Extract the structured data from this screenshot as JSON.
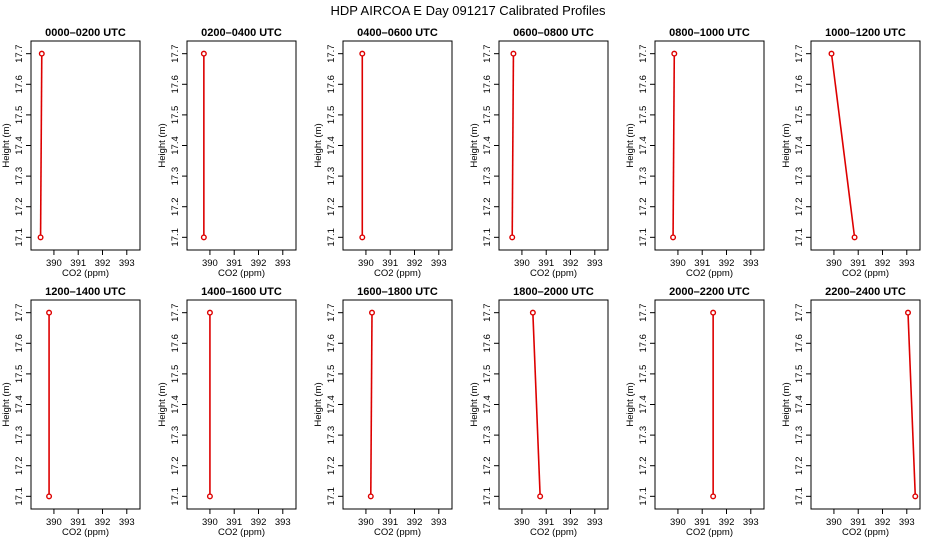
{
  "figure": {
    "title": "HDP AIRCOA E  Day 091217  Calibrated Profiles"
  },
  "chart_data": [
    {
      "type": "line",
      "title": "0000–0200 UTC",
      "xlabel": "CO2 (ppm)",
      "ylabel": "Height (m)",
      "xlim": [
        389.2,
        393.4
      ],
      "ylim": [
        17.07,
        17.73
      ],
      "xticks": [
        "390",
        "391",
        "392",
        "393"
      ],
      "yticks": [
        "17.1",
        "17.2",
        "17.3",
        "17.4",
        "17.5",
        "17.6",
        "17.7"
      ],
      "series": [
        {
          "x": [
            389.5,
            389.45
          ],
          "y": [
            17.7,
            17.1
          ]
        }
      ]
    },
    {
      "type": "line",
      "title": "0200–0400 UTC",
      "xlabel": "CO2 (ppm)",
      "ylabel": "Height (m)",
      "xlim": [
        389.2,
        393.4
      ],
      "ylim": [
        17.07,
        17.73
      ],
      "xticks": [
        "390",
        "391",
        "392",
        "393"
      ],
      "yticks": [
        "17.1",
        "17.2",
        "17.3",
        "17.4",
        "17.5",
        "17.6",
        "17.7"
      ],
      "series": [
        {
          "x": [
            389.75,
            389.75
          ],
          "y": [
            17.7,
            17.1
          ]
        }
      ]
    },
    {
      "type": "line",
      "title": "0400–0600 UTC",
      "xlabel": "CO2 (ppm)",
      "ylabel": "Height (m)",
      "xlim": [
        389.2,
        393.4
      ],
      "ylim": [
        17.07,
        17.73
      ],
      "xticks": [
        "390",
        "391",
        "392",
        "393"
      ],
      "yticks": [
        "17.1",
        "17.2",
        "17.3",
        "17.4",
        "17.5",
        "17.6",
        "17.7"
      ],
      "series": [
        {
          "x": [
            389.85,
            389.85
          ],
          "y": [
            17.7,
            17.1
          ]
        }
      ]
    },
    {
      "type": "line",
      "title": "0600–0800 UTC",
      "xlabel": "CO2 (ppm)",
      "ylabel": "Height (m)",
      "xlim": [
        389.2,
        393.4
      ],
      "ylim": [
        17.07,
        17.73
      ],
      "xticks": [
        "390",
        "391",
        "392",
        "393"
      ],
      "yticks": [
        "17.1",
        "17.2",
        "17.3",
        "17.4",
        "17.5",
        "17.6",
        "17.7"
      ],
      "series": [
        {
          "x": [
            389.65,
            389.6
          ],
          "y": [
            17.7,
            17.1
          ]
        }
      ]
    },
    {
      "type": "line",
      "title": "0800–1000 UTC",
      "xlabel": "CO2 (ppm)",
      "ylabel": "Height (m)",
      "xlim": [
        389.2,
        393.4
      ],
      "ylim": [
        17.07,
        17.73
      ],
      "xticks": [
        "390",
        "391",
        "392",
        "393"
      ],
      "yticks": [
        "17.1",
        "17.2",
        "17.3",
        "17.4",
        "17.5",
        "17.6",
        "17.7"
      ],
      "series": [
        {
          "x": [
            389.85,
            389.8
          ],
          "y": [
            17.7,
            17.1
          ]
        }
      ]
    },
    {
      "type": "line",
      "title": "1000–1200 UTC",
      "xlabel": "CO2 (ppm)",
      "ylabel": "Height (m)",
      "xlim": [
        389.2,
        393.4
      ],
      "ylim": [
        17.07,
        17.73
      ],
      "xticks": [
        "390",
        "391",
        "392",
        "393"
      ],
      "yticks": [
        "17.1",
        "17.2",
        "17.3",
        "17.4",
        "17.5",
        "17.6",
        "17.7"
      ],
      "series": [
        {
          "x": [
            389.9,
            390.85
          ],
          "y": [
            17.7,
            17.1
          ]
        }
      ]
    },
    {
      "type": "line",
      "title": "1200–1400 UTC",
      "xlabel": "CO2 (ppm)",
      "ylabel": "Height (m)",
      "xlim": [
        389.2,
        393.4
      ],
      "ylim": [
        17.07,
        17.73
      ],
      "xticks": [
        "390",
        "391",
        "392",
        "393"
      ],
      "yticks": [
        "17.1",
        "17.2",
        "17.3",
        "17.4",
        "17.5",
        "17.6",
        "17.7"
      ],
      "series": [
        {
          "x": [
            389.8,
            389.8
          ],
          "y": [
            17.7,
            17.1
          ]
        }
      ]
    },
    {
      "type": "line",
      "title": "1400–1600 UTC",
      "xlabel": "CO2 (ppm)",
      "ylabel": "Height (m)",
      "xlim": [
        389.2,
        393.4
      ],
      "ylim": [
        17.07,
        17.73
      ],
      "xticks": [
        "390",
        "391",
        "392",
        "393"
      ],
      "yticks": [
        "17.1",
        "17.2",
        "17.3",
        "17.4",
        "17.5",
        "17.6",
        "17.7"
      ],
      "series": [
        {
          "x": [
            390.0,
            390.0
          ],
          "y": [
            17.7,
            17.1
          ]
        }
      ]
    },
    {
      "type": "line",
      "title": "1600–1800 UTC",
      "xlabel": "CO2 (ppm)",
      "ylabel": "Height (m)",
      "xlim": [
        389.2,
        393.4
      ],
      "ylim": [
        17.07,
        17.73
      ],
      "xticks": [
        "390",
        "391",
        "392",
        "393"
      ],
      "yticks": [
        "17.1",
        "17.2",
        "17.3",
        "17.4",
        "17.5",
        "17.6",
        "17.7"
      ],
      "series": [
        {
          "x": [
            390.25,
            390.2
          ],
          "y": [
            17.7,
            17.1
          ]
        }
      ]
    },
    {
      "type": "line",
      "title": "1800–2000 UTC",
      "xlabel": "CO2 (ppm)",
      "ylabel": "Height (m)",
      "xlim": [
        389.2,
        393.4
      ],
      "ylim": [
        17.07,
        17.73
      ],
      "xticks": [
        "390",
        "391",
        "392",
        "393"
      ],
      "yticks": [
        "17.1",
        "17.2",
        "17.3",
        "17.4",
        "17.5",
        "17.6",
        "17.7"
      ],
      "series": [
        {
          "x": [
            390.45,
            390.75
          ],
          "y": [
            17.7,
            17.1
          ]
        }
      ]
    },
    {
      "type": "line",
      "title": "2000–2200 UTC",
      "xlabel": "CO2 (ppm)",
      "ylabel": "Height (m)",
      "xlim": [
        389.2,
        393.4
      ],
      "ylim": [
        17.07,
        17.73
      ],
      "xticks": [
        "390",
        "391",
        "392",
        "393"
      ],
      "yticks": [
        "17.1",
        "17.2",
        "17.3",
        "17.4",
        "17.5",
        "17.6",
        "17.7"
      ],
      "series": [
        {
          "x": [
            391.45,
            391.45
          ],
          "y": [
            17.7,
            17.1
          ]
        }
      ]
    },
    {
      "type": "line",
      "title": "2200–2400 UTC",
      "xlabel": "CO2 (ppm)",
      "ylabel": "Height (m)",
      "xlim": [
        389.2,
        393.4
      ],
      "ylim": [
        17.07,
        17.73
      ],
      "xticks": [
        "390",
        "391",
        "392",
        "393"
      ],
      "yticks": [
        "17.1",
        "17.2",
        "17.3",
        "17.4",
        "17.5",
        "17.6",
        "17.7"
      ],
      "series": [
        {
          "x": [
            393.05,
            393.35
          ],
          "y": [
            17.7,
            17.1
          ]
        }
      ]
    }
  ],
  "style": {
    "series_color": "#dd0000",
    "axis_color": "#000000",
    "background": "#ffffff"
  }
}
